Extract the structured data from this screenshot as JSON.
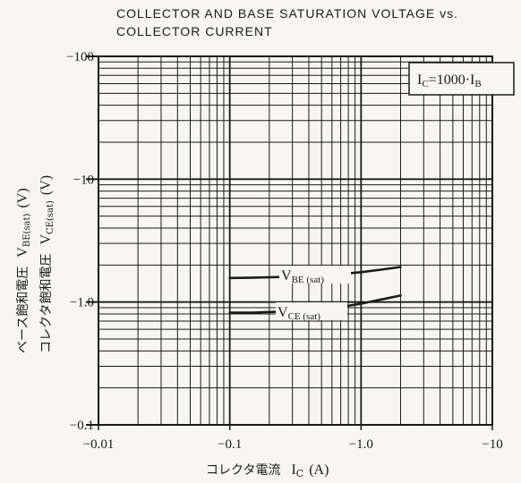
{
  "chart_data": {
    "type": "line",
    "title_line1": "COLLECTOR AND BASE SATURATION VOLTAGE vs.",
    "title_line2": "COLLECTOR CURRENT",
    "xlabel_jp": "コレクタ電流",
    "xlabel_sym": "I",
    "xlabel_sub": "C",
    "xlabel_unit": "(A)",
    "ylabel_line1_jp": "ベース飽和電圧",
    "ylabel_line1_sym": "V",
    "ylabel_line1_sub": "BE(sat)",
    "ylabel_line1_unit": "(V)",
    "ylabel_line2_jp": "コレクタ飽和電圧",
    "ylabel_line2_sym": "V",
    "ylabel_line2_sub": "CE(sat)",
    "ylabel_line2_unit": "(V)",
    "x_scale": "log",
    "y_scale": "log",
    "xlim": [
      -0.01,
      -10
    ],
    "ylim": [
      -0.1,
      -100
    ],
    "x_tick_labels": [
      "−0.01",
      "−0.1",
      "−1.0",
      "−10"
    ],
    "y_tick_labels": [
      "−0.1",
      "−1.0",
      "−10",
      "−100"
    ],
    "grid": true,
    "condition": {
      "sym1": "I",
      "sub1": "C",
      "text": "=1000·",
      "sym2": "I",
      "sub2": "B"
    },
    "series": [
      {
        "name": "V_BE(sat)",
        "label_sym": "V",
        "label_sub": "BE (sat)",
        "x": [
          -0.1,
          -0.15,
          -0.2,
          -0.3,
          -0.5,
          -0.7,
          -1.0,
          -1.5,
          -2.0
        ],
        "y": [
          -1.57,
          -1.58,
          -1.59,
          -1.61,
          -1.65,
          -1.69,
          -1.75,
          -1.85,
          -1.93
        ]
      },
      {
        "name": "V_CE(sat)",
        "label_sym": "V",
        "label_sub": "CE (sat)",
        "x": [
          -0.1,
          -0.15,
          -0.2,
          -0.3,
          -0.5,
          -0.7,
          -1.0,
          -1.5,
          -2.0
        ],
        "y": [
          -0.82,
          -0.82,
          -0.83,
          -0.84,
          -0.87,
          -0.91,
          -0.97,
          -1.06,
          -1.13
        ]
      }
    ]
  }
}
